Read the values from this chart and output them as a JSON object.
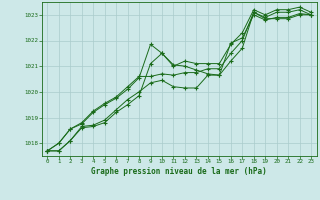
{
  "xlabel": "Graphe pression niveau de la mer (hPa)",
  "background_color": "#cde8e8",
  "plot_bg_color": "#cde8e8",
  "grid_color": "#aacccc",
  "line_color": "#1a6b1a",
  "marker_color": "#1a6b1a",
  "xlim": [
    -0.5,
    23.5
  ],
  "ylim": [
    1017.5,
    1023.5
  ],
  "yticks": [
    1018,
    1019,
    1020,
    1021,
    1022,
    1023
  ],
  "xticks": [
    0,
    1,
    2,
    3,
    4,
    5,
    6,
    7,
    8,
    9,
    10,
    11,
    12,
    13,
    14,
    15,
    16,
    17,
    18,
    19,
    20,
    21,
    22,
    23
  ],
  "series": [
    [
      1017.7,
      1017.7,
      1018.1,
      1018.6,
      1018.65,
      1018.8,
      1019.2,
      1019.5,
      1019.85,
      1021.1,
      1021.5,
      1021.05,
      1021.0,
      1020.85,
      1020.7,
      1020.65,
      1021.2,
      1021.7,
      1023.1,
      1022.85,
      1022.85,
      1022.85,
      1023.0,
      1023.0
    ],
    [
      1017.7,
      1017.7,
      1018.1,
      1018.65,
      1018.7,
      1018.9,
      1019.3,
      1019.7,
      1020.0,
      1020.35,
      1020.45,
      1020.2,
      1020.15,
      1020.15,
      1020.65,
      1020.65,
      1021.9,
      1022.1,
      1023.0,
      1022.8,
      1022.9,
      1022.9,
      1023.05,
      1023.0
    ],
    [
      1017.7,
      1018.0,
      1018.55,
      1018.75,
      1019.2,
      1019.5,
      1019.75,
      1020.1,
      1020.55,
      1021.85,
      1021.5,
      1021.0,
      1021.2,
      1021.1,
      1021.1,
      1021.1,
      1021.85,
      1022.3,
      1023.2,
      1023.0,
      1023.2,
      1023.2,
      1023.3,
      1023.1
    ],
    [
      1017.7,
      1018.0,
      1018.55,
      1018.8,
      1019.25,
      1019.55,
      1019.8,
      1020.2,
      1020.6,
      1020.6,
      1020.7,
      1020.65,
      1020.75,
      1020.75,
      1020.9,
      1020.9,
      1021.5,
      1022.0,
      1023.1,
      1022.9,
      1023.1,
      1023.1,
      1023.2,
      1023.0
    ]
  ]
}
